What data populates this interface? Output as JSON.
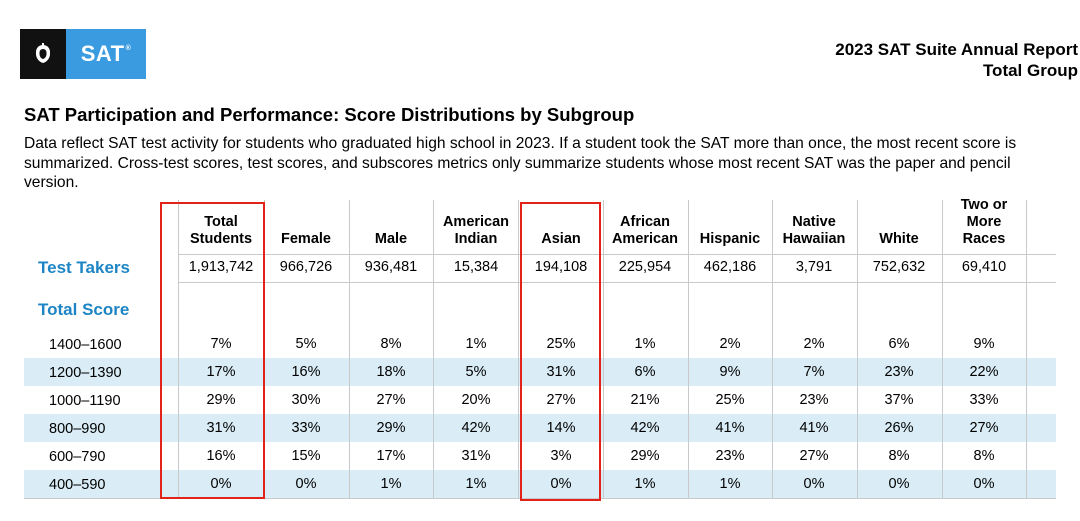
{
  "header": {
    "logo_text": "SAT",
    "logo_mark": "®",
    "report_title_line1": "2023 SAT Suite Annual Report",
    "report_title_line2": "Total Group"
  },
  "section": {
    "title": "SAT Participation and Performance: Score Distributions by Subgroup",
    "description": "Data reflect SAT test activity for students who graduated high school in 2023. If a student took the SAT more than once, the most recent score is summarized. Cross-test scores, test scores, and subscores metrics only summarize students whose most recent SAT was the paper and pencil version."
  },
  "table": {
    "columns": [
      {
        "line1": "Total",
        "line2": "Students"
      },
      {
        "line1": "",
        "line2": "Female"
      },
      {
        "line1": "",
        "line2": "Male"
      },
      {
        "line1": "American",
        "line2": "Indian"
      },
      {
        "line1": "",
        "line2": "Asian"
      },
      {
        "line1": "African",
        "line2": "American"
      },
      {
        "line1": "",
        "line2": "Hispanic"
      },
      {
        "line1": "Native",
        "line2": "Hawaiian"
      },
      {
        "line1": "",
        "line2": "White"
      },
      {
        "line0": "Two or",
        "line1": "More",
        "line2": "Races"
      }
    ],
    "test_takers_label": "Test Takers",
    "test_takers": [
      "1,913,742",
      "966,726",
      "936,481",
      "15,384",
      "194,108",
      "225,954",
      "462,186",
      "3,791",
      "752,632",
      "69,410"
    ],
    "total_score_label": "Total Score",
    "score_rows": [
      {
        "label": "1400–1600",
        "values": [
          "7%",
          "5%",
          "8%",
          "1%",
          "25%",
          "1%",
          "2%",
          "2%",
          "6%",
          "9%"
        ]
      },
      {
        "label": "1200–1390",
        "values": [
          "17%",
          "16%",
          "18%",
          "5%",
          "31%",
          "6%",
          "9%",
          "7%",
          "23%",
          "22%"
        ]
      },
      {
        "label": "1000–1190",
        "values": [
          "29%",
          "30%",
          "27%",
          "20%",
          "27%",
          "21%",
          "25%",
          "23%",
          "37%",
          "33%"
        ]
      },
      {
        "label": "800–990",
        "values": [
          "31%",
          "33%",
          "29%",
          "42%",
          "14%",
          "42%",
          "41%",
          "41%",
          "26%",
          "27%"
        ]
      },
      {
        "label": "600–790",
        "values": [
          "16%",
          "15%",
          "17%",
          "31%",
          "3%",
          "29%",
          "23%",
          "27%",
          "8%",
          "8%"
        ]
      },
      {
        "label": "400–590",
        "values": [
          "0%",
          "0%",
          "1%",
          "1%",
          "0%",
          "1%",
          "1%",
          "0%",
          "0%",
          "0%"
        ]
      }
    ]
  },
  "colors": {
    "label_blue": "#1d85c5",
    "band_blue": "#daedf7",
    "highlight_red": "#e2231a",
    "logo_blue": "#3b9be0"
  }
}
